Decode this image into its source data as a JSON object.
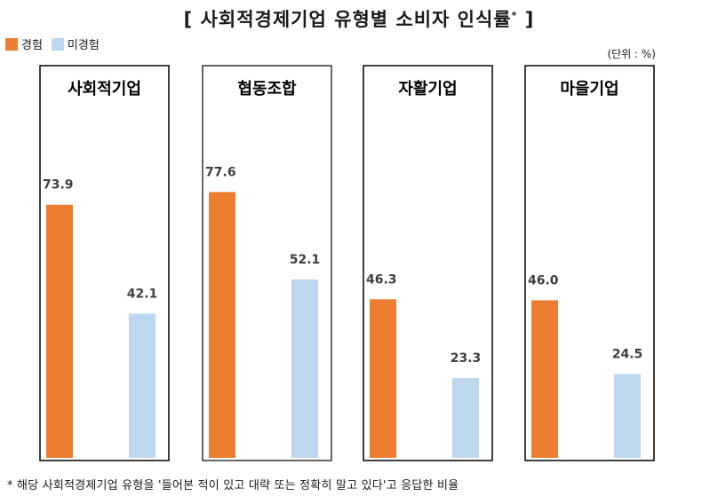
{
  "chart_data": {
    "type": "bar",
    "title": "[ 사회적경제기업 유형별 소비자 인식률",
    "title_mark": "*",
    "title_end": "]",
    "unit": "(단위 : %)",
    "legend": [
      "경험",
      "미경험"
    ],
    "colors": {
      "경험": "#ED7D31",
      "미경험": "#BDD7EE"
    },
    "ylim": [
      0,
      100
    ],
    "categories": [
      "사회적기업",
      "협동조합",
      "자활기업",
      "마을기업"
    ],
    "series": [
      {
        "name": "경험",
        "values": [
          73.9,
          77.6,
          46.3,
          46.0
        ],
        "labels": [
          "73.9",
          "77.6",
          "46.3",
          "46.0"
        ]
      },
      {
        "name": "미경험",
        "values": [
          42.1,
          52.1,
          23.3,
          24.5
        ],
        "labels": [
          "42.1",
          "52.1",
          "23.3",
          "24.5"
        ]
      }
    ],
    "footnote": "* 해당 사회적경제기업 유형을 '들어본 적이 있고 대략 또는 정확히 말고 있다'고 응답한 비율"
  }
}
